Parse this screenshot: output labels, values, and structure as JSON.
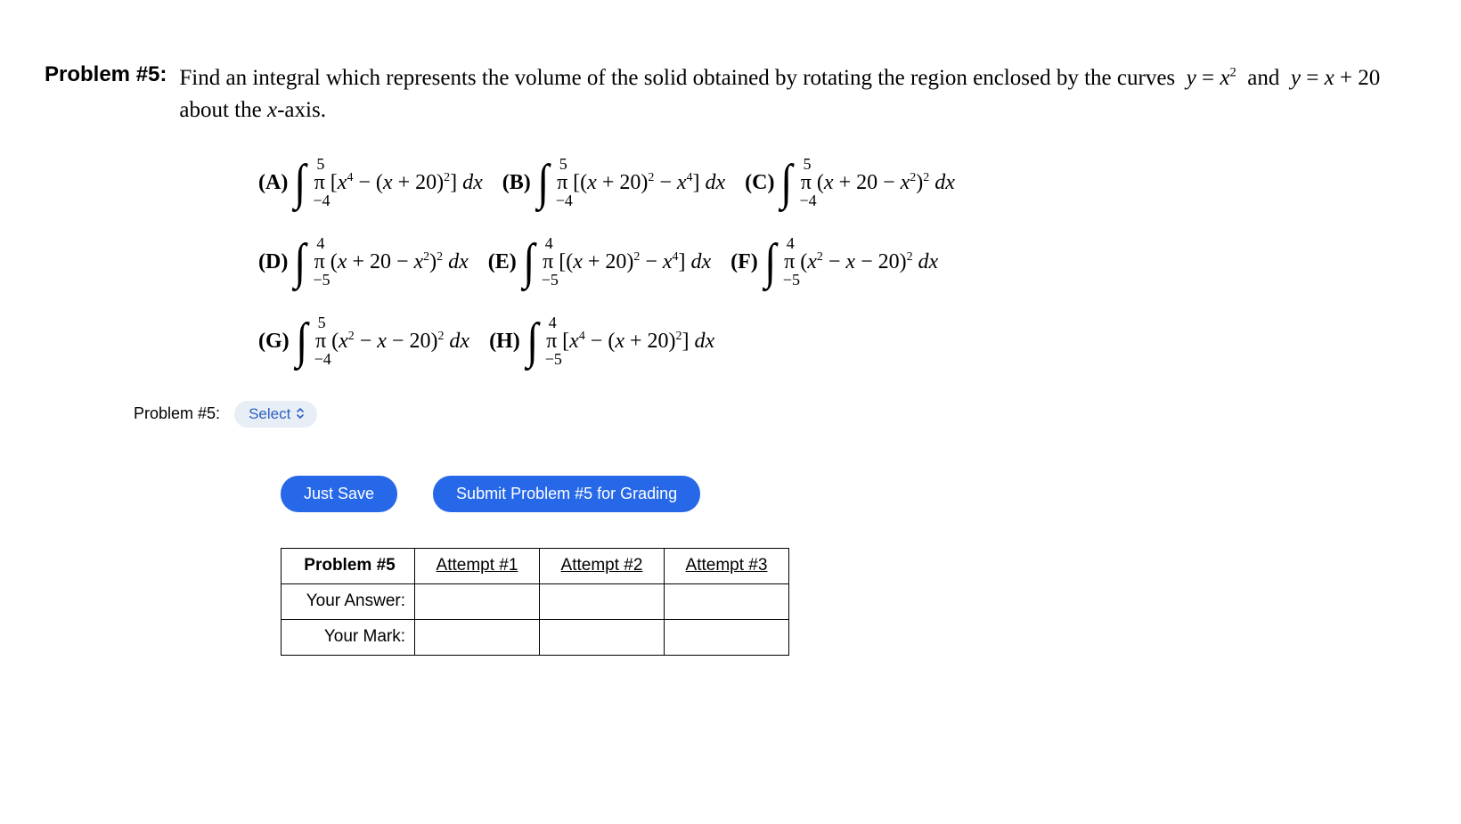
{
  "problem": {
    "label": "Problem #5:",
    "text_html": "Find an integral which represents the volume of the solid obtained by rotating the region enclosed by the curves&nbsp; <span class='it'>y</span>&nbsp;=&nbsp;<span class='it'>x</span><sup>2</sup>&nbsp; and&nbsp; <span class='it'>y</span>&nbsp;=&nbsp;<span class='it'>x</span>&nbsp;+&nbsp;20&nbsp; about the <span class='it'>x</span>-axis."
  },
  "choices": [
    [
      {
        "letter": "(A)",
        "upper": "5",
        "lower": "−4",
        "integrand_html": "π&nbsp;[<span class='it'>x</span><sup>4</sup> − (<span class='it'>x</span> + 20)<sup>2</sup>]&nbsp;<span class='it'>dx</span>"
      },
      {
        "letter": "(B)",
        "upper": "5",
        "lower": "−4",
        "integrand_html": "π&nbsp;[(<span class='it'>x</span> + 20)<sup>2</sup> − <span class='it'>x</span><sup>4</sup>]&nbsp;<span class='it'>dx</span>"
      },
      {
        "letter": "(C)",
        "upper": "5",
        "lower": "−4",
        "integrand_html": "π&nbsp;(<span class='it'>x</span> + 20 − <span class='it'>x</span><sup>2</sup>)<sup>2</sup>&nbsp;<span class='it'>dx</span>"
      }
    ],
    [
      {
        "letter": "(D)",
        "upper": "4",
        "lower": "−5",
        "integrand_html": "π&nbsp;(<span class='it'>x</span> + 20 − <span class='it'>x</span><sup>2</sup>)<sup>2</sup>&nbsp;<span class='it'>dx</span>"
      },
      {
        "letter": "(E)",
        "upper": "4",
        "lower": "−5",
        "integrand_html": "π&nbsp;[(<span class='it'>x</span> + 20)<sup>2</sup> − <span class='it'>x</span><sup>4</sup>]&nbsp;<span class='it'>dx</span>"
      },
      {
        "letter": "(F)",
        "upper": "4",
        "lower": "−5",
        "integrand_html": "π&nbsp;(<span class='it'>x</span><sup>2</sup> − <span class='it'>x</span> − 20)<sup>2</sup>&nbsp;<span class='it'>dx</span>"
      }
    ],
    [
      {
        "letter": "(G)",
        "upper": "5",
        "lower": "−4",
        "integrand_html": "π&nbsp;(<span class='it'>x</span><sup>2</sup> − <span class='it'>x</span> − 20)<sup>2</sup>&nbsp;<span class='it'>dx</span>"
      },
      {
        "letter": "(H)",
        "upper": "4",
        "lower": "−5",
        "integrand_html": "π&nbsp;[<span class='it'>x</span><sup>4</sup> − (<span class='it'>x</span> + 20)<sup>2</sup>]&nbsp;<span class='it'>dx</span>"
      }
    ]
  ],
  "answer_row": {
    "label": "Problem #5:",
    "select_label": "Select"
  },
  "buttons": {
    "save": "Just Save",
    "submit": "Submit Problem #5 for Grading"
  },
  "attempts_table": {
    "header": "Problem #5",
    "attempt_labels": [
      "Attempt #1",
      "Attempt #2",
      "Attempt #3"
    ],
    "row_labels": [
      "Your Answer:",
      "Your Mark:"
    ]
  },
  "colors": {
    "button_bg": "#2768e8",
    "select_bg": "#e8eef5",
    "select_text": "#2b5fc7",
    "text": "#000000",
    "bg": "#ffffff"
  },
  "typography": {
    "body_font": "Times New Roman",
    "ui_font": "Verdana",
    "body_size_pt": 19,
    "ui_size_pt": 14
  }
}
